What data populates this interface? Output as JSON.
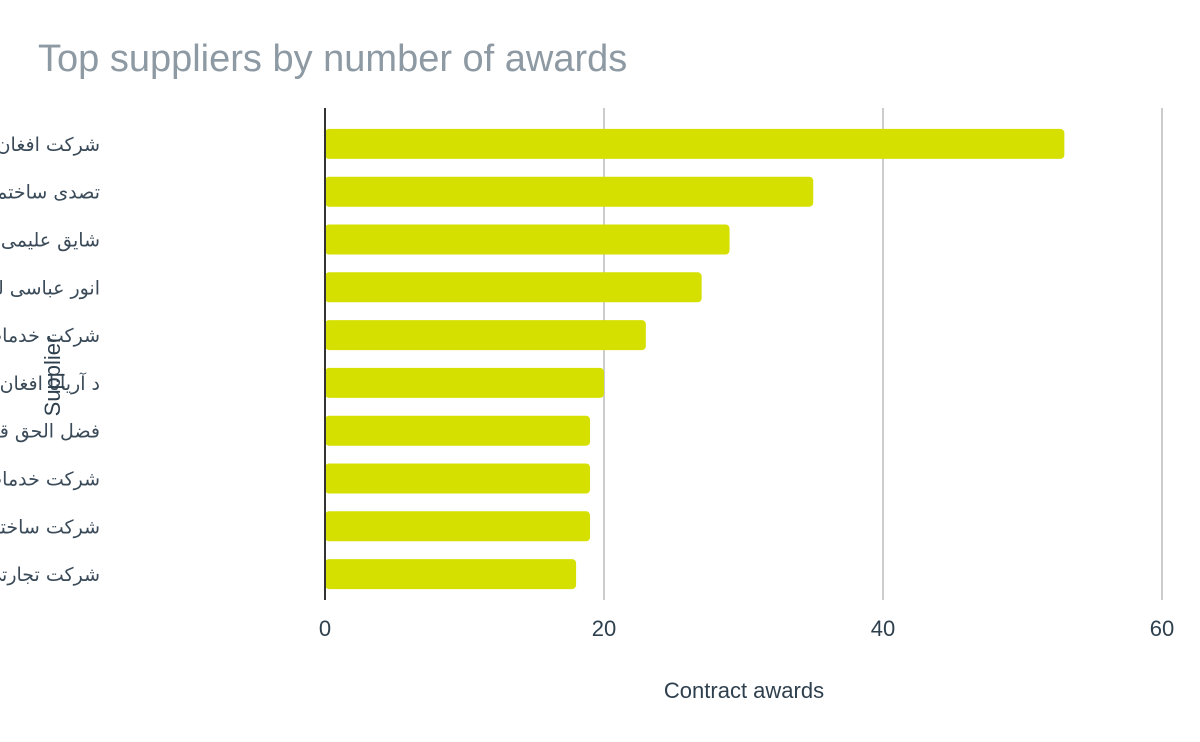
{
  "chart_data": {
    "type": "bar",
    "orientation": "horizontal",
    "title": "Top suppliers by number of awards",
    "xlabel": "Contract awards",
    "ylabel": "Supplier",
    "categories": [
      "شرکت افغان تیلی کام",
      "تصدی ساختمانی بنایی",
      "شایق علیمی لمتد",
      "انور عباسی لمیتد",
      "شرکت خدمات لوژستیکی",
      "د آریانا افغان هوائی",
      "فضل الحق قرغه ئی لمیتد",
      "شرکت خدمات لوژستیکی",
      "شرکت ساختمانی و",
      "شرکت تجارتی و"
    ],
    "values": [
      53,
      35,
      29,
      27,
      23,
      20,
      19,
      19,
      19,
      18
    ],
    "xlim": [
      0,
      60
    ],
    "xticks": [
      "0",
      "20",
      "40",
      "60"
    ],
    "grid": true,
    "legend": "none",
    "colors": {
      "bar": "#d6e000",
      "grid": "#cccccc",
      "axis": "#333333",
      "title": "#8e9aa3",
      "text": "#2e3f4d"
    }
  }
}
